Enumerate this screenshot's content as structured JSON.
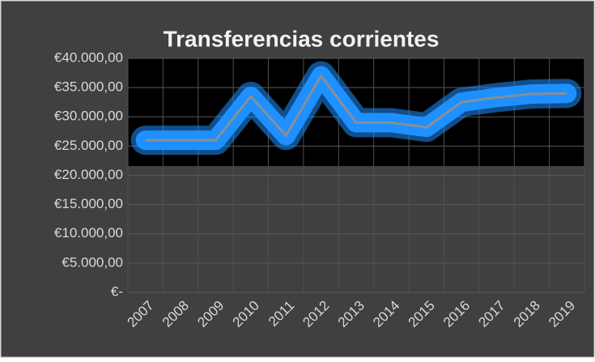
{
  "chart_data": {
    "type": "line",
    "title": "Transferencias corrientes",
    "categories": [
      "2007",
      "2008",
      "2009",
      "2010",
      "2011",
      "2012",
      "2013",
      "2014",
      "2015",
      "2016",
      "2017",
      "2018",
      "2019"
    ],
    "values": [
      26000,
      26000,
      26000,
      33500,
      26800,
      37000,
      29000,
      29000,
      28200,
      32500,
      33300,
      33900,
      34000
    ],
    "color": "#8a8f96",
    "glow_color": "#1e90ff",
    "ylim": [
      0,
      40000
    ],
    "yticks": [
      {
        "value": 0,
        "label": "€-"
      },
      {
        "value": 5000,
        "label": "€5.000,00"
      },
      {
        "value": 10000,
        "label": "€10.000,00"
      },
      {
        "value": 15000,
        "label": "€15.000,00"
      },
      {
        "value": 20000,
        "label": "€20.000,00"
      },
      {
        "value": 25000,
        "label": "€25.000,00"
      },
      {
        "value": 30000,
        "label": "€30.000,00"
      },
      {
        "value": 35000,
        "label": "€35.000,00"
      },
      {
        "value": 40000,
        "label": "€40.000,00"
      }
    ],
    "grid": true
  }
}
